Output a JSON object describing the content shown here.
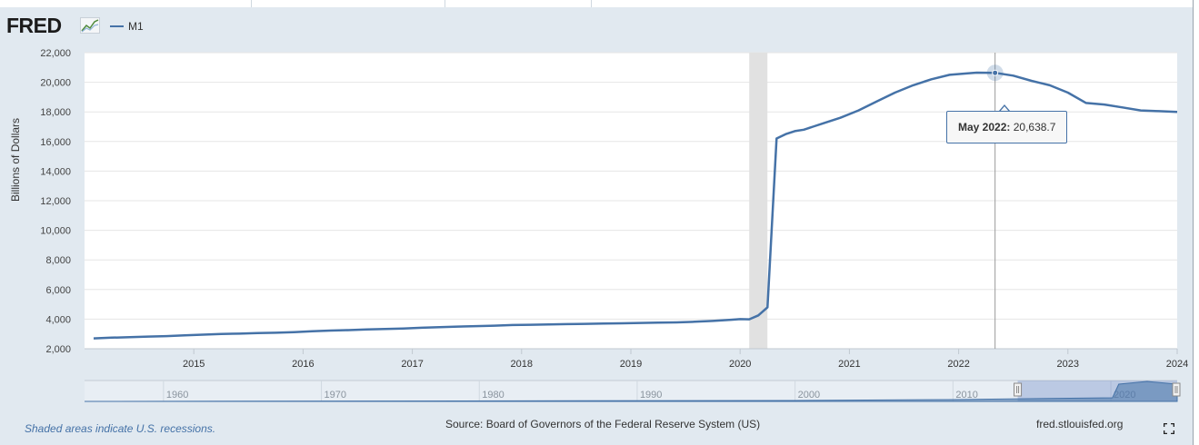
{
  "header": {
    "logo_text": "FRED",
    "legend_label": "M1",
    "series_color": "#4572a7"
  },
  "chart_data": {
    "type": "line",
    "series": [
      {
        "name": "M1",
        "x": [
          "2014-02",
          "2014-04",
          "2014-06",
          "2014-08",
          "2014-10",
          "2014-12",
          "2015-02",
          "2015-04",
          "2015-06",
          "2015-08",
          "2015-10",
          "2015-12",
          "2016-02",
          "2016-04",
          "2016-06",
          "2016-08",
          "2016-10",
          "2016-12",
          "2017-02",
          "2017-04",
          "2017-06",
          "2017-08",
          "2017-10",
          "2017-12",
          "2018-02",
          "2018-04",
          "2018-06",
          "2018-08",
          "2018-10",
          "2018-12",
          "2019-02",
          "2019-04",
          "2019-06",
          "2019-08",
          "2019-10",
          "2019-12",
          "2020-01",
          "2020-02",
          "2020-03",
          "2020-04",
          "2020-05",
          "2020-06",
          "2020-07",
          "2020-08",
          "2020-09",
          "2020-10",
          "2020-12",
          "2021-02",
          "2021-04",
          "2021-06",
          "2021-08",
          "2021-10",
          "2021-12",
          "2022-02",
          "2022-03",
          "2022-05",
          "2022-07",
          "2022-09",
          "2022-11",
          "2023-01",
          "2023-03",
          "2023-05",
          "2023-07",
          "2023-09",
          "2023-11",
          "2024-01"
        ],
        "y": [
          2700,
          2750,
          2780,
          2820,
          2850,
          2900,
          2950,
          3000,
          3020,
          3060,
          3080,
          3120,
          3180,
          3230,
          3260,
          3300,
          3330,
          3370,
          3420,
          3460,
          3500,
          3530,
          3560,
          3600,
          3620,
          3640,
          3660,
          3680,
          3700,
          3720,
          3740,
          3760,
          3780,
          3820,
          3880,
          3960,
          4000,
          3990,
          4250,
          4800,
          16200,
          16500,
          16700,
          16800,
          17000,
          17200,
          17600,
          18100,
          18700,
          19300,
          19800,
          20200,
          20500,
          20600,
          20650,
          20638.7,
          20450,
          20100,
          19800,
          19300,
          18600,
          18500,
          18300,
          18100,
          18050,
          18000
        ]
      }
    ],
    "x_ticks": [
      "2015",
      "2016",
      "2017",
      "2018",
      "2019",
      "2020",
      "2021",
      "2022",
      "2023",
      "2024"
    ],
    "y_ticks": [
      "2,000",
      "4,000",
      "6,000",
      "8,000",
      "10,000",
      "12,000",
      "14,000",
      "16,000",
      "18,000",
      "20,000",
      "22,000"
    ],
    "ylim": [
      2000,
      22000
    ],
    "xlim": [
      "2014-01",
      "2024-01"
    ],
    "ylabel": "Billions of Dollars",
    "recession": {
      "start": "2020-02",
      "end": "2020-04"
    },
    "tooltip": {
      "date": "May 2022:",
      "value": "20,638.7"
    },
    "navigator_ticks": [
      "1960",
      "1970",
      "1980",
      "1990",
      "2000",
      "2010",
      "2020"
    ],
    "grid": true
  },
  "footer": {
    "recession_note": "Shaded areas indicate U.S. recessions.",
    "source": "Source: Board of Governors of the Federal Reserve System (US)",
    "site": "fred.stlouisfed.org",
    "fullscreen_icon": "fullscreen-icon"
  }
}
